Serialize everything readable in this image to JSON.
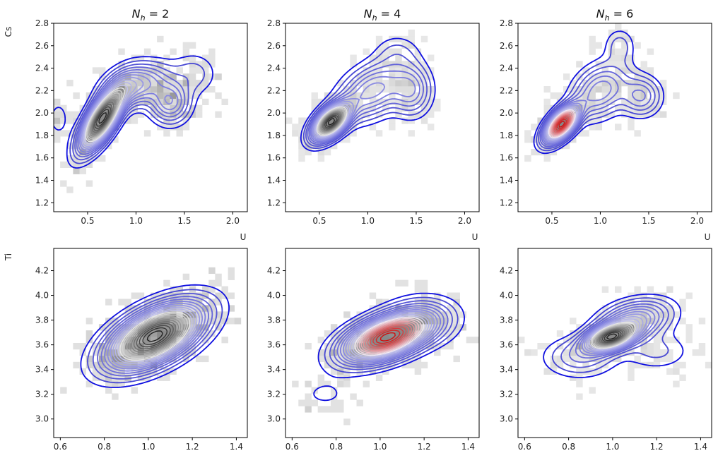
{
  "figure": {
    "row_labels": [
      "Cs",
      "Ti"
    ],
    "titles": [
      "N_h = 2",
      "N_h = 4",
      "N_h = 6"
    ],
    "x_label_top_row": "U"
  },
  "colors": {
    "outer_contour": "#1010e0",
    "inner_low": "#3a3ad0",
    "inner_mid": "#ffffff",
    "inner_high": "#d01010",
    "hist_dark": "#888888",
    "hist_light": "#ebebeb"
  },
  "chart_data": [
    {
      "type": "heatmap",
      "title": "N_h = 2",
      "xlabel": "U",
      "ylabel": "Cs",
      "xlim": [
        0.15,
        2.15
      ],
      "ylim": [
        1.12,
        2.8
      ],
      "xticks": [
        0.5,
        1.0,
        1.5,
        2.0
      ],
      "yticks": [
        1.2,
        1.4,
        1.6,
        1.8,
        2.0,
        2.2,
        2.4,
        2.6,
        2.8
      ],
      "colormap_top": "black",
      "density_components": [
        {
          "weight": 1.0,
          "mean": [
            0.65,
            1.95
          ],
          "sd": [
            0.14,
            0.17
          ],
          "corr": 0.72
        },
        {
          "weight": 0.3,
          "mean": [
            1.0,
            2.25
          ],
          "sd": [
            0.2,
            0.12
          ],
          "corr": 0.3
        },
        {
          "weight": 0.25,
          "mean": [
            1.35,
            2.1
          ],
          "sd": [
            0.13,
            0.12
          ],
          "corr": 0.0
        },
        {
          "weight": 0.08,
          "mean": [
            1.6,
            2.35
          ],
          "sd": [
            0.15,
            0.12
          ],
          "corr": 0.0
        },
        {
          "weight": 0.05,
          "mean": [
            0.2,
            1.95
          ],
          "sd": [
            0.08,
            0.12
          ],
          "corr": 0.0
        }
      ]
    },
    {
      "type": "heatmap",
      "title": "N_h = 4",
      "xlabel": "U",
      "ylabel": "Cs",
      "xlim": [
        0.15,
        2.15
      ],
      "ylim": [
        1.12,
        2.8
      ],
      "xticks": [
        0.5,
        1.0,
        1.5,
        2.0
      ],
      "yticks": [
        1.2,
        1.4,
        1.6,
        1.8,
        2.0,
        2.2,
        2.4,
        2.6,
        2.8
      ],
      "colormap_top": "black",
      "density_components": [
        {
          "weight": 1.0,
          "mean": [
            0.62,
            1.92
          ],
          "sd": [
            0.12,
            0.1
          ],
          "corr": 0.55
        },
        {
          "weight": 0.28,
          "mean": [
            1.05,
            2.2
          ],
          "sd": [
            0.22,
            0.16
          ],
          "corr": 0.4
        },
        {
          "weight": 0.2,
          "mean": [
            1.45,
            2.2
          ],
          "sd": [
            0.13,
            0.14
          ],
          "corr": 0.0
        },
        {
          "weight": 0.06,
          "mean": [
            1.3,
            2.55
          ],
          "sd": [
            0.15,
            0.1
          ],
          "corr": 0.0
        }
      ]
    },
    {
      "type": "heatmap",
      "title": "N_h = 6",
      "xlabel": "U",
      "ylabel": "Cs",
      "xlim": [
        0.15,
        2.15
      ],
      "ylim": [
        1.12,
        2.8
      ],
      "xticks": [
        0.5,
        1.0,
        1.5,
        2.0
      ],
      "yticks": [
        1.2,
        1.4,
        1.6,
        1.8,
        2.0,
        2.2,
        2.4,
        2.6,
        2.8
      ],
      "colormap_top": "red",
      "density_components": [
        {
          "weight": 1.0,
          "mean": [
            0.6,
            1.9
          ],
          "sd": [
            0.11,
            0.1
          ],
          "corr": 0.6
        },
        {
          "weight": 0.25,
          "mean": [
            1.0,
            2.2
          ],
          "sd": [
            0.18,
            0.15
          ],
          "corr": 0.3
        },
        {
          "weight": 0.18,
          "mean": [
            1.42,
            2.15
          ],
          "sd": [
            0.13,
            0.11
          ],
          "corr": 0.0
        },
        {
          "weight": 0.08,
          "mean": [
            1.2,
            2.6
          ],
          "sd": [
            0.1,
            0.1
          ],
          "corr": 0.0
        }
      ]
    },
    {
      "type": "heatmap",
      "title": "",
      "xlabel": "",
      "ylabel": "Ti",
      "xlim": [
        0.57,
        1.45
      ],
      "ylim": [
        2.85,
        4.38
      ],
      "xticks": [
        0.6,
        0.8,
        1.0,
        1.2,
        1.4
      ],
      "yticks": [
        3.0,
        3.2,
        3.4,
        3.6,
        3.8,
        4.0,
        4.2
      ],
      "colormap_top": "black",
      "density_components": [
        {
          "weight": 1.0,
          "mean": [
            1.03,
            3.67
          ],
          "sd": [
            0.13,
            0.16
          ],
          "corr": 0.55
        }
      ]
    },
    {
      "type": "heatmap",
      "title": "",
      "xlabel": "",
      "ylabel": "Ti",
      "xlim": [
        0.57,
        1.45
      ],
      "ylim": [
        2.85,
        4.38
      ],
      "xticks": [
        0.6,
        0.8,
        1.0,
        1.2,
        1.4
      ],
      "yticks": [
        3.0,
        3.2,
        3.4,
        3.6,
        3.8,
        4.0,
        4.2
      ],
      "colormap_top": "red",
      "density_components": [
        {
          "weight": 1.0,
          "mean": [
            1.03,
            3.66
          ],
          "sd": [
            0.12,
            0.12
          ],
          "corr": 0.5
        },
        {
          "weight": 0.12,
          "mean": [
            1.2,
            3.8
          ],
          "sd": [
            0.1,
            0.12
          ],
          "corr": 0.0
        },
        {
          "weight": 0.04,
          "mean": [
            0.75,
            3.2
          ],
          "sd": [
            0.1,
            0.1
          ],
          "corr": 0.0
        }
      ]
    },
    {
      "type": "heatmap",
      "title": "",
      "xlabel": "",
      "ylabel": "Ti",
      "xlim": [
        0.57,
        1.45
      ],
      "ylim": [
        2.85,
        4.38
      ],
      "xticks": [
        0.6,
        0.8,
        1.0,
        1.2,
        1.4
      ],
      "yticks": [
        3.0,
        3.2,
        3.4,
        3.6,
        3.8,
        4.0,
        4.2
      ],
      "colormap_top": "black",
      "density_components": [
        {
          "weight": 1.0,
          "mean": [
            0.99,
            3.66
          ],
          "sd": [
            0.07,
            0.07
          ],
          "corr": 0.4
        },
        {
          "weight": 0.35,
          "mean": [
            1.1,
            3.8
          ],
          "sd": [
            0.1,
            0.1
          ],
          "corr": 0.3
        },
        {
          "weight": 0.15,
          "mean": [
            0.85,
            3.5
          ],
          "sd": [
            0.1,
            0.1
          ],
          "corr": 0.0
        },
        {
          "weight": 0.08,
          "mean": [
            1.2,
            3.55
          ],
          "sd": [
            0.1,
            0.1
          ],
          "corr": 0.0
        }
      ]
    }
  ]
}
